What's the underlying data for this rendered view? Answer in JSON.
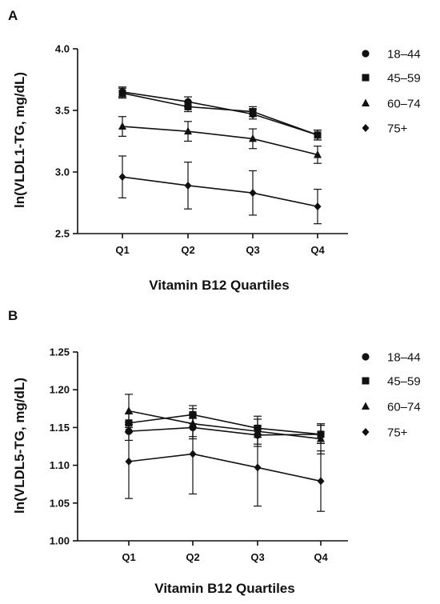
{
  "chart_data": [
    {
      "panel": "A",
      "type": "line",
      "categories": [
        "Q1",
        "Q2",
        "Q3",
        "Q4"
      ],
      "xlabel": "Vitamin B12 Quartiles",
      "ylabel": "ln(VLDL1-TG, mg/dL)",
      "ylim": [
        2.5,
        4.0
      ],
      "yticks": [
        "2.5",
        "3.0",
        "3.5",
        "4.0"
      ],
      "grid": false,
      "legend_position": "right",
      "series": [
        {
          "name": "18–44",
          "marker": "circle",
          "values": [
            3.65,
            3.57,
            3.47,
            3.3
          ],
          "err_low": [
            0.04,
            0.04,
            0.04,
            0.04
          ],
          "err_high": [
            0.04,
            0.04,
            0.04,
            0.04
          ]
        },
        {
          "name": "45–59",
          "marker": "square",
          "values": [
            3.64,
            3.53,
            3.49,
            3.3
          ],
          "err_low": [
            0.04,
            0.04,
            0.04,
            0.04
          ],
          "err_high": [
            0.04,
            0.04,
            0.04,
            0.04
          ]
        },
        {
          "name": "60–74",
          "marker": "triangle",
          "values": [
            3.37,
            3.33,
            3.27,
            3.14
          ],
          "err_low": [
            0.08,
            0.08,
            0.08,
            0.07
          ],
          "err_high": [
            0.08,
            0.08,
            0.08,
            0.07
          ]
        },
        {
          "name": "75+",
          "marker": "diamond",
          "values": [
            2.96,
            2.89,
            2.83,
            2.72
          ],
          "err_low": [
            0.17,
            0.19,
            0.18,
            0.14
          ],
          "err_high": [
            0.17,
            0.19,
            0.18,
            0.14
          ]
        }
      ]
    },
    {
      "panel": "B",
      "type": "line",
      "categories": [
        "Q1",
        "Q2",
        "Q3",
        "Q4"
      ],
      "xlabel": "Vitamin B12 Quartiles",
      "ylabel": "ln(VLDL5-TG, mg/dL)",
      "ylim": [
        1.0,
        1.25
      ],
      "yticks": [
        "1.00",
        "1.05",
        "1.10",
        "1.15",
        "1.20",
        "1.25"
      ],
      "grid": false,
      "legend_position": "right",
      "series": [
        {
          "name": "18–44",
          "marker": "circle",
          "values": [
            1.145,
            1.15,
            1.14,
            1.141
          ],
          "err_low": [
            0.012,
            0.012,
            0.012,
            0.012
          ],
          "err_high": [
            0.012,
            0.012,
            0.012,
            0.012
          ]
        },
        {
          "name": "45–59",
          "marker": "square",
          "values": [
            1.156,
            1.167,
            1.149,
            1.141
          ],
          "err_low": [
            0.012,
            0.012,
            0.012,
            0.012
          ],
          "err_high": [
            0.012,
            0.012,
            0.012,
            0.012
          ]
        },
        {
          "name": "60–74",
          "marker": "triangle",
          "values": [
            1.172,
            1.155,
            1.145,
            1.135
          ],
          "err_low": [
            0.022,
            0.02,
            0.02,
            0.02
          ],
          "err_high": [
            0.022,
            0.02,
            0.02,
            0.02
          ]
        },
        {
          "name": "75+",
          "marker": "diamond",
          "values": [
            1.105,
            1.115,
            1.097,
            1.079
          ],
          "err_low": [
            0.049,
            0.053,
            0.051,
            0.04
          ],
          "err_high": [
            0.049,
            0.053,
            0.051,
            0.04
          ]
        }
      ]
    }
  ]
}
